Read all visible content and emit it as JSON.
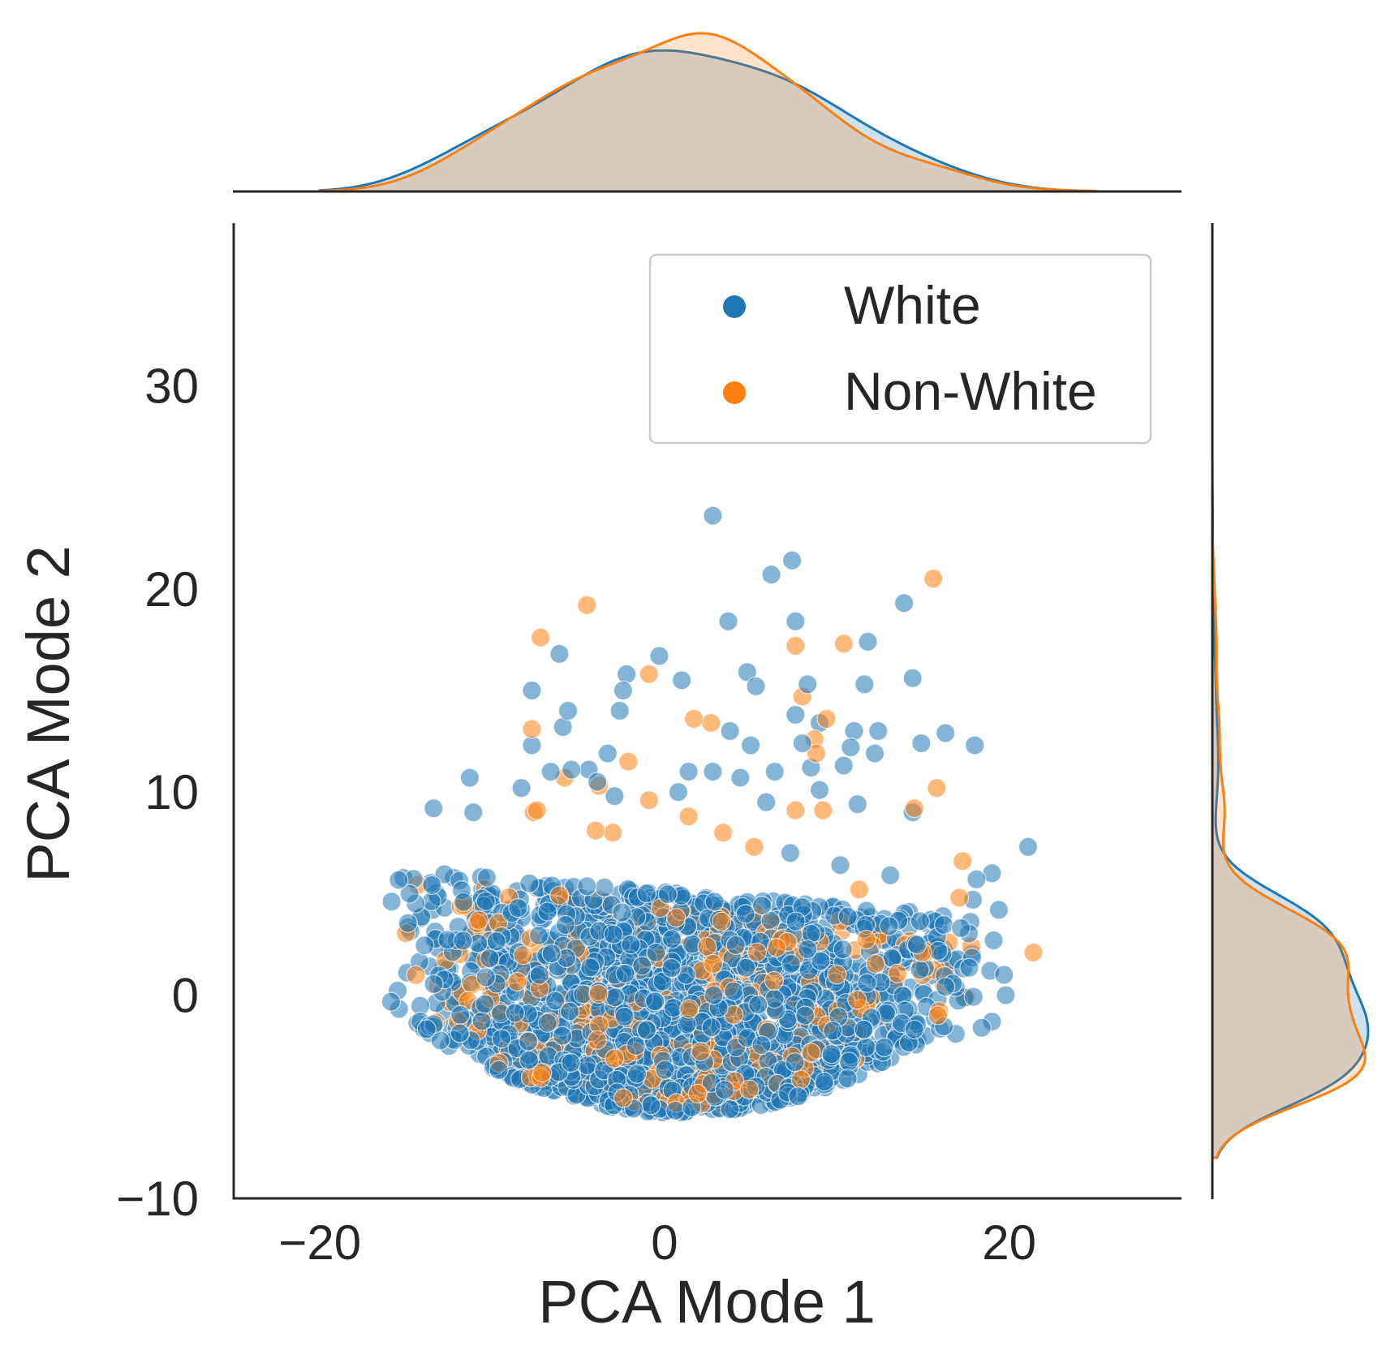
{
  "chart_data": {
    "type": "scatter",
    "subtype": "jointplot with marginal KDE",
    "xlabel": "PCA Mode 1",
    "ylabel": "PCA Mode 2",
    "xlim": [
      -25,
      30
    ],
    "ylim": [
      -10,
      38
    ],
    "xticks": [
      -20,
      0,
      20
    ],
    "yticks": [
      -10,
      0,
      10,
      20,
      30
    ],
    "xtick_labels": [
      "−20",
      "0",
      "20"
    ],
    "ytick_labels": [
      "−10",
      "0",
      "10",
      "20",
      "30"
    ],
    "grid": false,
    "legend": {
      "position": "top-right",
      "entries": [
        "White",
        "Non-White"
      ]
    },
    "colors": {
      "White": "#1f77b4",
      "Non-White": "#ff7f0e",
      "axis": "#262626"
    },
    "marker_alpha": 0.55,
    "series": [
      {
        "name": "White",
        "cloud": {
          "count": 1800,
          "x_range": [
            -16,
            18
          ],
          "y_bottom": -5.8,
          "y_top_center": 5,
          "shape": "half-disc"
        },
        "outliers": [
          [
            2.8,
            23.6
          ],
          [
            6.2,
            20.7
          ],
          [
            7.4,
            21.4
          ],
          [
            3.7,
            18.4
          ],
          [
            7.6,
            18.4
          ],
          [
            13.9,
            19.3
          ],
          [
            11.8,
            17.4
          ],
          [
            -0.3,
            16.7
          ],
          [
            -6.1,
            16.8
          ],
          [
            1.0,
            15.5
          ],
          [
            -2.2,
            15.8
          ],
          [
            -2.4,
            15.0
          ],
          [
            4.8,
            15.9
          ],
          [
            5.3,
            15.2
          ],
          [
            8.3,
            15.3
          ],
          [
            11.6,
            15.3
          ],
          [
            14.4,
            15.6
          ],
          [
            -7.7,
            15.0
          ],
          [
            -5.6,
            14.0
          ],
          [
            -2.6,
            14.0
          ],
          [
            7.6,
            13.8
          ],
          [
            9.0,
            13.4
          ],
          [
            11.0,
            13.0
          ],
          [
            12.4,
            13.0
          ],
          [
            16.3,
            12.9
          ],
          [
            -7.7,
            12.3
          ],
          [
            -5.9,
            13.2
          ],
          [
            3.8,
            13.0
          ],
          [
            5.0,
            12.3
          ],
          [
            8.0,
            12.4
          ],
          [
            10.8,
            12.2
          ],
          [
            12.2,
            11.9
          ],
          [
            14.9,
            12.4
          ],
          [
            18.0,
            12.3
          ],
          [
            -3.3,
            11.9
          ],
          [
            -6.6,
            11.0
          ],
          [
            -5.4,
            11.1
          ],
          [
            1.4,
            11.0
          ],
          [
            2.8,
            11.0
          ],
          [
            6.4,
            11.0
          ],
          [
            8.5,
            11.2
          ],
          [
            10.4,
            11.3
          ],
          [
            -11.3,
            10.7
          ],
          [
            -8.3,
            10.2
          ],
          [
            -4.4,
            11.1
          ],
          [
            -3.9,
            10.5
          ],
          [
            4.4,
            10.7
          ],
          [
            9.0,
            10.1
          ],
          [
            -13.4,
            9.2
          ],
          [
            -11.1,
            9.0
          ],
          [
            -2.9,
            9.8
          ],
          [
            0.8,
            10.0
          ],
          [
            5.9,
            9.5
          ],
          [
            11.2,
            9.4
          ],
          [
            14.4,
            9.0
          ],
          [
            21.1,
            7.3
          ],
          [
            19.0,
            6.0
          ],
          [
            19.4,
            4.2
          ],
          [
            17.9,
            4.7
          ],
          [
            18.1,
            5.7
          ],
          [
            19.1,
            2.7
          ],
          [
            18.9,
            1.2
          ],
          [
            19.7,
            1.0
          ],
          [
            19.8,
            0.0
          ],
          [
            19.0,
            -1.3
          ],
          [
            18.4,
            -1.6
          ],
          [
            16.9,
            -1.9
          ],
          [
            14.2,
            4.1
          ],
          [
            13.1,
            5.9
          ],
          [
            7.3,
            7.0
          ],
          [
            10.2,
            6.4
          ]
        ]
      },
      {
        "name": "Non-White",
        "cloud": {
          "count": 420,
          "x_range": [
            -15.5,
            17
          ],
          "y_bottom": -5.5,
          "y_top_center": 4.5,
          "shape": "half-disc"
        },
        "outliers": [
          [
            -4.5,
            19.2
          ],
          [
            -7.2,
            17.6
          ],
          [
            15.6,
            20.5
          ],
          [
            7.6,
            17.2
          ],
          [
            10.4,
            17.3
          ],
          [
            -0.9,
            15.8
          ],
          [
            8.0,
            14.7
          ],
          [
            1.7,
            13.6
          ],
          [
            2.7,
            13.4
          ],
          [
            -7.7,
            13.1
          ],
          [
            9.4,
            13.6
          ],
          [
            8.7,
            12.6
          ],
          [
            8.8,
            11.9
          ],
          [
            -2.1,
            11.5
          ],
          [
            -5.8,
            10.7
          ],
          [
            -3.8,
            10.3
          ],
          [
            15.8,
            10.2
          ],
          [
            -0.9,
            9.6
          ],
          [
            -7.4,
            9.1
          ],
          [
            1.4,
            8.8
          ],
          [
            7.6,
            9.1
          ],
          [
            9.2,
            9.1
          ],
          [
            14.5,
            9.2
          ],
          [
            17.3,
            6.6
          ],
          [
            17.1,
            4.8
          ],
          [
            16.5,
            2.6
          ],
          [
            21.4,
            2.1
          ],
          [
            17.8,
            2.4
          ],
          [
            17.5,
            -0.1
          ],
          [
            16.2,
            0.5
          ],
          [
            -7.6,
            9.0
          ],
          [
            -4.0,
            8.1
          ],
          [
            -3.0,
            8.0
          ],
          [
            3.4,
            8.0
          ],
          [
            5.2,
            7.3
          ],
          [
            11.3,
            5.2
          ]
        ]
      }
    ]
  }
}
